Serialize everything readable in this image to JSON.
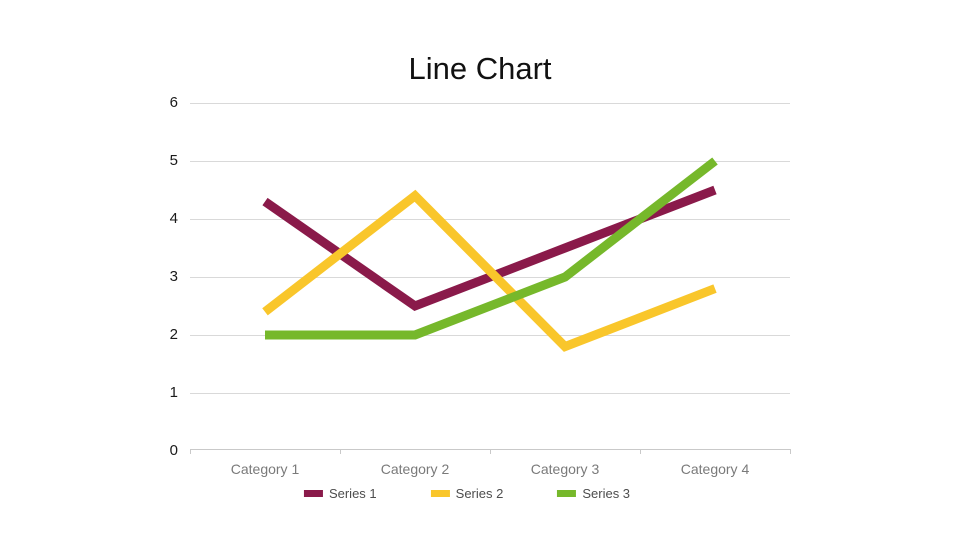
{
  "chart_data": {
    "type": "line",
    "title": "Line Chart",
    "categories": [
      "Category 1",
      "Category 2",
      "Category 3",
      "Category 4"
    ],
    "series": [
      {
        "name": "Series 1",
        "color": "#8A1A4A",
        "values": [
          4.3,
          2.5,
          3.5,
          4.5
        ]
      },
      {
        "name": "Series 2",
        "color": "#F9C62B",
        "values": [
          2.4,
          4.4,
          1.8,
          2.8
        ]
      },
      {
        "name": "Series 3",
        "color": "#76B82B",
        "values": [
          2,
          2,
          3,
          5
        ]
      }
    ],
    "ylim": [
      0,
      6
    ],
    "y_ticks": [
      6,
      5,
      4,
      3,
      2,
      1,
      0
    ],
    "grid": true,
    "legend_position": "bottom",
    "colors": {
      "background": "#FFFFFF",
      "gridline": "#D9D9D9",
      "axis_line": "#C9C9C9",
      "title_text": "#111111",
      "y_tick_text": "#1A1A1A",
      "category_text": "#7A7A7A",
      "legend_text": "#4D4D4D"
    }
  }
}
